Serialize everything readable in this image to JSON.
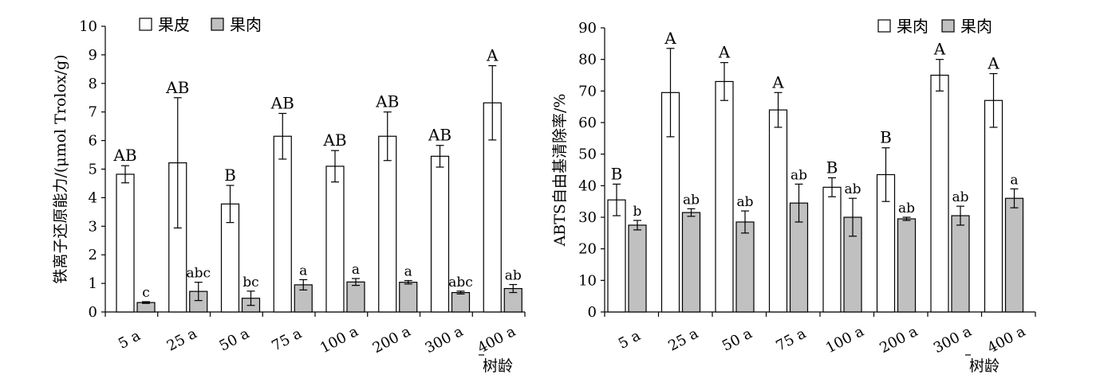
{
  "chart_data": [
    {
      "type": "bar",
      "ylabel": "铁离子还原能力/(μmol Trolox/g)",
      "xlabel": "树龄",
      "categories": [
        "5 a",
        "25 a",
        "50 a",
        "75 a",
        "100 a",
        "200 a",
        "300 a",
        "400 a"
      ],
      "ylim": [
        0,
        10
      ],
      "yticks": [
        "0",
        "1",
        "2",
        "3",
        "4",
        "5",
        "6",
        "7",
        "8",
        "9",
        "10"
      ],
      "grid": false,
      "legend_position": "top-left",
      "series": [
        {
          "name": "果皮",
          "color": "#ffffff",
          "values": [
            4.82,
            5.22,
            3.78,
            6.15,
            5.1,
            6.15,
            5.45,
            7.32
          ],
          "errors": [
            0.3,
            2.28,
            0.65,
            0.8,
            0.55,
            0.85,
            0.38,
            1.3
          ],
          "labels": [
            "AB",
            "AB",
            "B",
            "AB",
            "AB",
            "AB",
            "AB",
            "A"
          ]
        },
        {
          "name": "果肉",
          "color": "#c0c0c0",
          "values": [
            0.33,
            0.72,
            0.48,
            0.95,
            1.05,
            1.04,
            0.68,
            0.82
          ],
          "errors": [
            0.03,
            0.32,
            0.25,
            0.18,
            0.12,
            0.06,
            0.05,
            0.14
          ],
          "labels": [
            "c",
            "abc",
            "bc",
            "a",
            "a",
            "a",
            "abc",
            "ab"
          ]
        }
      ]
    },
    {
      "type": "bar",
      "ylabel": "ABTS自由基清除率/%",
      "xlabel": "树龄",
      "categories": [
        "5 a",
        "25 a",
        "50 a",
        "75 a",
        "100 a",
        "200 a",
        "300 a",
        "400 a"
      ],
      "ylim": [
        0,
        90
      ],
      "yticks": [
        "0",
        "10",
        "20",
        "30",
        "40",
        "50",
        "60",
        "70",
        "80",
        "90"
      ],
      "grid": false,
      "legend_position": "top-right",
      "series": [
        {
          "name": "果肉",
          "color": "#ffffff",
          "values": [
            35.5,
            69.5,
            73,
            64,
            39.5,
            43.5,
            75,
            67
          ],
          "errors": [
            5,
            14,
            6,
            5.5,
            3,
            8.5,
            5,
            8.5
          ],
          "labels": [
            "B",
            "A",
            "A",
            "A",
            "B",
            "B",
            "A",
            "A"
          ]
        },
        {
          "name": "果肉",
          "color": "#c0c0c0",
          "values": [
            27.5,
            31.5,
            28.5,
            34.5,
            30,
            29.5,
            30.5,
            36
          ],
          "errors": [
            1.5,
            1.2,
            3.5,
            6,
            6,
            0.5,
            3,
            3
          ],
          "labels": [
            "b",
            "ab",
            "ab",
            "ab",
            "ab",
            "ab",
            "ab",
            "a"
          ]
        }
      ]
    }
  ]
}
